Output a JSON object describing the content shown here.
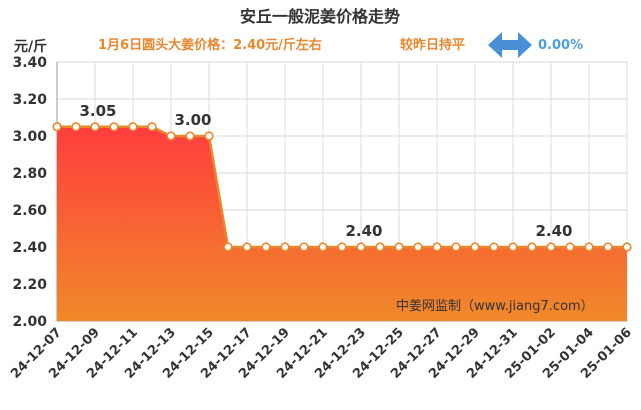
{
  "header": {
    "title": "安丘一般泥姜价格走势",
    "subtitle": "1月6日圆头大姜价格：2.40元/斤左右",
    "compare_text": "较昨日持平",
    "change_percent": "0.00%",
    "change_icon": "double-arrow-icon"
  },
  "colors": {
    "accent": "#e8872e",
    "line": "#e8872e",
    "fill_top": "#ff3d3d",
    "fill_bottom": "#f0892a",
    "arrow": "#4a90d6"
  },
  "chart_data": {
    "type": "area",
    "x": [
      "24-12-07",
      "24-12-08",
      "24-12-09",
      "24-12-10",
      "24-12-11",
      "24-12-12",
      "24-12-13",
      "24-12-14",
      "24-12-15",
      "24-12-16",
      "24-12-17",
      "24-12-18",
      "24-12-19",
      "24-12-20",
      "24-12-21",
      "24-12-22",
      "24-12-23",
      "24-12-24",
      "24-12-25",
      "24-12-26",
      "24-12-27",
      "24-12-28",
      "24-12-29",
      "24-12-30",
      "24-12-31",
      "25-01-01",
      "25-01-02",
      "25-01-03",
      "25-01-04",
      "25-01-05",
      "25-01-06"
    ],
    "x_tick_labels": [
      "24-12-07",
      "24-12-09",
      "24-12-11",
      "24-12-13",
      "24-12-15",
      "24-12-17",
      "24-12-19",
      "24-12-21",
      "24-12-23",
      "24-12-25",
      "24-12-27",
      "24-12-29",
      "24-12-31",
      "25-01-02",
      "25-01-04",
      "25-01-06"
    ],
    "values": [
      3.05,
      3.05,
      3.05,
      3.05,
      3.05,
      3.05,
      3.0,
      3.0,
      3.0,
      2.4,
      2.4,
      2.4,
      2.4,
      2.4,
      2.4,
      2.4,
      2.4,
      2.4,
      2.4,
      2.4,
      2.4,
      2.4,
      2.4,
      2.4,
      2.4,
      2.4,
      2.4,
      2.4,
      2.4,
      2.4,
      2.4
    ],
    "y_ticks": [
      "2.00",
      "2.20",
      "2.40",
      "2.60",
      "2.80",
      "3.00",
      "3.20",
      "3.40"
    ],
    "ylim": [
      2.0,
      3.4
    ],
    "ylabel": "元/斤",
    "xlabel": "",
    "grid": true,
    "annotations": [
      {
        "x": "24-12-09",
        "text": "3.05"
      },
      {
        "x": "24-12-14",
        "text": "3.00"
      },
      {
        "x": "24-12-23",
        "text": "2.40"
      },
      {
        "x": "25-01-02",
        "text": "2.40"
      }
    ],
    "source": "中姜网监制（www.jiang7.com）"
  }
}
